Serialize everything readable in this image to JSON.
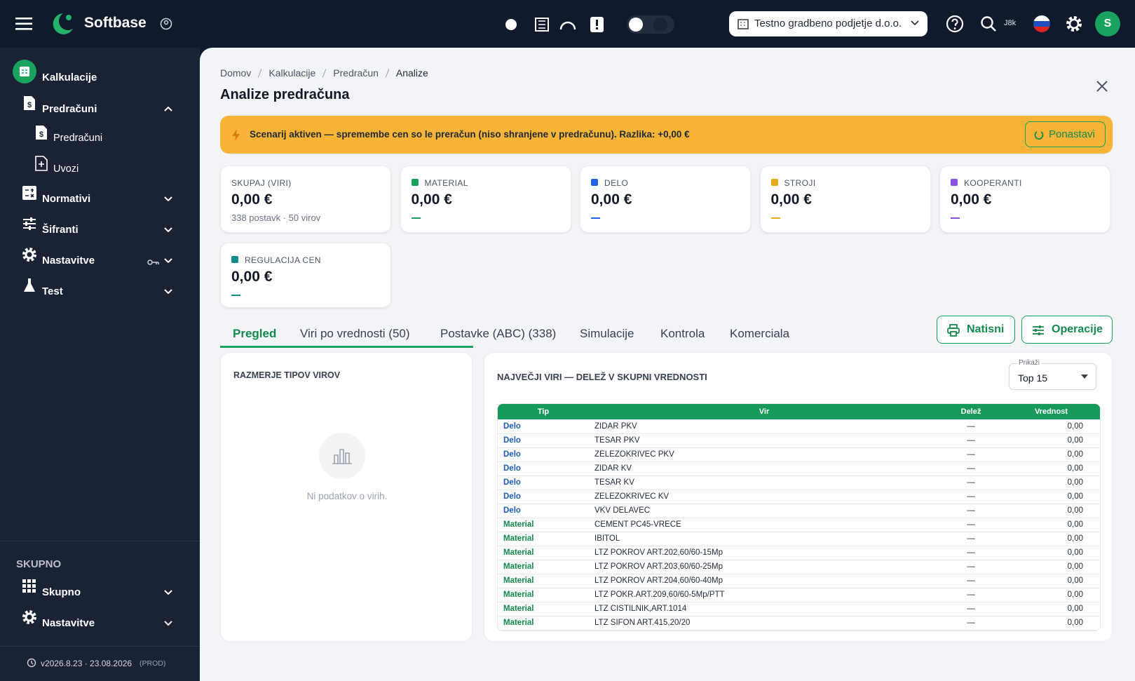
{
  "topbar": {
    "brand": "Softbase",
    "company": "Testno gradbeno podjetje d.o.o.",
    "search_hint": "J8k",
    "avatar": "S"
  },
  "sidebar": {
    "items": [
      {
        "label": "Kalkulacije"
      },
      {
        "label": "Predračuni"
      },
      {
        "label": "Predračuni"
      },
      {
        "label": "Uvozi"
      },
      {
        "label": "Normativi"
      },
      {
        "label": "Šifranti"
      },
      {
        "label": "Nastavitve"
      },
      {
        "label": "Test"
      }
    ],
    "section": "SKUPNO",
    "section_items": [
      {
        "label": "Skupno"
      },
      {
        "label": "Nastavitve"
      }
    ],
    "version": "v2026.8.23 · 23.08.2026",
    "env": "(PROD)"
  },
  "breadcrumb": [
    "Domov",
    "Kalkulacije",
    "Predračun",
    "Analize"
  ],
  "page_title": "Analize predračuna",
  "alert": {
    "text": "Scenarij aktiven — spremembe cen so le preračun (niso shranjene v predračunu). Razlika: +0,00 €",
    "button": "Ponastavi"
  },
  "cards": [
    {
      "label": "SKUPAJ (VIRI)",
      "value": "0,00 €",
      "sub": "338 postavk · 50 virov"
    },
    {
      "label": "MATERIAL",
      "value": "0,00 €",
      "color": "#16a05a"
    },
    {
      "label": "DELO",
      "value": "0,00 €",
      "color": "#2563eb"
    },
    {
      "label": "STROJI",
      "value": "0,00 €",
      "color": "#e6a817"
    },
    {
      "label": "KOOPERANTI",
      "value": "0,00 €",
      "color": "#8b4fe0"
    },
    {
      "label": "REGULACIJA CEN",
      "value": "0,00 €",
      "color": "#128a8f"
    }
  ],
  "tabs": [
    "Pregled",
    "Viri po vrednosti (50)",
    "Postavke (ABC) (338)",
    "Simulacije",
    "Kontrola",
    "Komerciala"
  ],
  "buttons": [
    "Natisni",
    "Operacije"
  ],
  "left_panel": {
    "title": "RAZMERJE TIPOV VIROV",
    "empty": "Ni podatkov o virih."
  },
  "table": {
    "title": "NAJVEČJI VIRI — DELEŽ V SKUPNI VREDNOSTI",
    "show_label": "Prikaži",
    "show_value": "Top 15",
    "type_colors": {
      "Delo": "#1d5fbf",
      "Material": "#138a4a"
    },
    "columns": [
      "Tip",
      "Vir",
      "Delež",
      "Vrednost"
    ],
    "rows": [
      [
        "Delo",
        "ZIDAR PKV",
        "—",
        "0,00"
      ],
      [
        "Delo",
        "TESAR PKV",
        "—",
        "0,00"
      ],
      [
        "Delo",
        "ZELEZOKRIVEC PKV",
        "—",
        "0,00"
      ],
      [
        "Delo",
        "ZIDAR KV",
        "—",
        "0,00"
      ],
      [
        "Delo",
        "TESAR KV",
        "—",
        "0,00"
      ],
      [
        "Delo",
        "ZELEZOKRIVEC KV",
        "—",
        "0,00"
      ],
      [
        "Delo",
        "VKV DELAVEC",
        "—",
        "0,00"
      ],
      [
        "Material",
        "CEMENT PC45-VRECE",
        "—",
        "0,00"
      ],
      [
        "Material",
        "IBITOL",
        "—",
        "0,00"
      ],
      [
        "Material",
        "LTZ POKROV ART.202,60/60-15Mp",
        "—",
        "0,00"
      ],
      [
        "Material",
        "LTZ POKROV ART.203,60/60-25Mp",
        "—",
        "0,00"
      ],
      [
        "Material",
        "LTZ POKROV ART.204,60/60-40Mp",
        "—",
        "0,00"
      ],
      [
        "Material",
        "LTZ POKR.ART.209,60/60-5Mp/PTT",
        "—",
        "0,00"
      ],
      [
        "Material",
        "LTZ CISTILNIK,ART.1014",
        "—",
        "0,00"
      ],
      [
        "Material",
        "LTZ SIFON ART.415,20/20",
        "—",
        "0,00"
      ]
    ]
  }
}
